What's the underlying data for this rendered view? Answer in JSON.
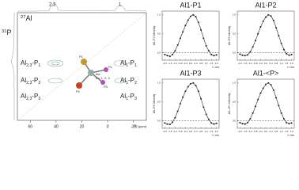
{
  "spectrum": {
    "f2_nucleus": [
      "27",
      "Al"
    ],
    "f1_nucleus": [
      "31",
      "P"
    ],
    "top_labels": [
      "2,3",
      "1"
    ],
    "left_labels": [
      [
        "Al",
        "2,3",
        "-P",
        "1"
      ],
      [
        "Al",
        "2,3",
        "-P",
        "2"
      ],
      [
        "Al",
        "2,3",
        "-P",
        "3"
      ]
    ],
    "right_labels": [
      [
        "Al",
        "1",
        "-P",
        "1"
      ],
      [
        "Al",
        "1",
        "-P",
        "2"
      ],
      [
        "Al",
        "1",
        "-P",
        "3"
      ]
    ],
    "molecule": {
      "p1": "P1",
      "px": "Px",
      "alx": "Alx",
      "note": "x = 1, 2, 3",
      "p3": "P3",
      "p2": "P2"
    },
    "xlim": [
      70,
      -30
    ],
    "xticks": [
      60,
      40,
      20,
      0,
      -20
    ],
    "xlabel": "F2 [ppm]"
  },
  "chart_data": [
    {
      "type": "line",
      "title": "Al1-P1",
      "ylabel": "Al1-P1 Intensity",
      "xlabel": "t / ms",
      "color": "#222",
      "x": [
        -2.0,
        -1.8,
        -1.6,
        -1.4,
        -1.2,
        -1.0,
        -0.8,
        -0.6,
        -0.4,
        -0.2,
        0.0,
        0.2,
        0.4,
        0.6,
        0.8,
        1.0,
        1.2,
        1.4,
        1.6,
        1.8,
        2.0
      ],
      "values": [
        -0.05,
        -0.08,
        -0.1,
        -0.05,
        0.05,
        0.2,
        0.38,
        0.55,
        0.72,
        0.86,
        0.96,
        1.0,
        0.95,
        0.8,
        0.6,
        0.38,
        0.18,
        0.05,
        -0.05,
        -0.08,
        -0.06
      ],
      "xlim": [
        -2.2,
        2.2
      ],
      "xticks": [
        {
          "value": -2,
          "label": "-2.0"
        },
        {
          "value": -1.6,
          "label": "-1.6"
        },
        {
          "value": -1.2,
          "label": "-1.2"
        },
        {
          "value": -0.8,
          "label": "-0.8"
        },
        {
          "value": -0.4,
          "label": "-0.4"
        },
        {
          "value": 0,
          "label": "0.0"
        },
        {
          "value": 0.4,
          "label": "0.4"
        },
        {
          "value": 0.8,
          "label": "0.8"
        },
        {
          "value": 1.2,
          "label": "1.2"
        },
        {
          "value": 1.6,
          "label": "1.6"
        },
        {
          "value": 2,
          "label": "2.0"
        }
      ],
      "ylim": [
        -0.2,
        1.1
      ],
      "yticks": [
        {
          "value": 0,
          "label": "0.0"
        },
        {
          "value": 0.5,
          "label": "0.5"
        },
        {
          "value": 1,
          "label": "1.0"
        }
      ]
    },
    {
      "type": "line",
      "title": "Al1-P2",
      "ylabel": "Al1-P2 Intensity",
      "xlabel": "t / ms",
      "color": "#222",
      "x": [
        -2.0,
        -1.8,
        -1.6,
        -1.4,
        -1.2,
        -1.0,
        -0.8,
        -0.6,
        -0.4,
        -0.2,
        0.0,
        0.2,
        0.4,
        0.6,
        0.8,
        1.0,
        1.2,
        1.4,
        1.6,
        1.8,
        2.0
      ],
      "values": [
        -0.04,
        -0.07,
        -0.08,
        -0.06,
        0.02,
        0.15,
        0.32,
        0.5,
        0.68,
        0.83,
        0.94,
        1.0,
        0.97,
        0.85,
        0.66,
        0.45,
        0.24,
        0.08,
        -0.03,
        -0.07,
        -0.05
      ],
      "xlim": [
        -2.2,
        2.2
      ],
      "xticks": [
        {
          "value": -2,
          "label": "-2.0"
        },
        {
          "value": -1.6,
          "label": "-1.6"
        },
        {
          "value": -1.2,
          "label": "-1.2"
        },
        {
          "value": -0.8,
          "label": "-0.8"
        },
        {
          "value": -0.4,
          "label": "-0.4"
        },
        {
          "value": 0,
          "label": "0.0"
        },
        {
          "value": 0.4,
          "label": "0.4"
        },
        {
          "value": 0.8,
          "label": "0.8"
        },
        {
          "value": 1.2,
          "label": "1.2"
        },
        {
          "value": 1.6,
          "label": "1.6"
        },
        {
          "value": 2,
          "label": "2.0"
        }
      ],
      "ylim": [
        -0.2,
        1.1
      ],
      "yticks": [
        {
          "value": 0,
          "label": "0.0"
        },
        {
          "value": 0.5,
          "label": "0.5"
        },
        {
          "value": 1,
          "label": "1.0"
        }
      ]
    },
    {
      "type": "line",
      "title": "Al1-P3",
      "ylabel": "Al1-P3 Intensity",
      "xlabel": "t / ms",
      "color": "#222",
      "x": [
        -2.0,
        -1.8,
        -1.6,
        -1.4,
        -1.2,
        -1.0,
        -0.8,
        -0.6,
        -0.4,
        -0.2,
        0.0,
        0.2,
        0.4,
        0.6,
        0.8,
        1.0,
        1.2,
        1.4,
        1.6,
        1.8,
        2.0
      ],
      "values": [
        -0.06,
        -0.09,
        -0.1,
        -0.04,
        0.08,
        0.25,
        0.45,
        0.62,
        0.78,
        0.9,
        0.98,
        1.0,
        0.93,
        0.78,
        0.58,
        0.36,
        0.17,
        0.03,
        -0.06,
        -0.09,
        -0.07
      ],
      "xlim": [
        -2.2,
        2.2
      ],
      "xticks": [
        {
          "value": -2,
          "label": "-2.0"
        },
        {
          "value": -1.6,
          "label": "-1.6"
        },
        {
          "value": -1.2,
          "label": "-1.2"
        },
        {
          "value": -0.8,
          "label": "-0.8"
        },
        {
          "value": -0.4,
          "label": "-0.4"
        },
        {
          "value": 0,
          "label": "0.0"
        },
        {
          "value": 0.4,
          "label": "0.4"
        },
        {
          "value": 0.8,
          "label": "0.8"
        },
        {
          "value": 1.2,
          "label": "1.2"
        },
        {
          "value": 1.6,
          "label": "1.6"
        },
        {
          "value": 2,
          "label": "2.0"
        }
      ],
      "ylim": [
        -0.2,
        1.1
      ],
      "yticks": [
        {
          "value": 0,
          "label": "0.0"
        },
        {
          "value": 0.5,
          "label": "0.5"
        },
        {
          "value": 1,
          "label": "1.0"
        }
      ]
    },
    {
      "type": "line",
      "title": "Al1-<P>",
      "ylabel": "Al1-<P> Intensity",
      "xlabel": "t / ms",
      "color": "#222",
      "x": [
        -2.0,
        -1.8,
        -1.6,
        -1.4,
        -1.2,
        -1.0,
        -0.8,
        -0.6,
        -0.4,
        -0.2,
        0.0,
        0.2,
        0.4,
        0.6,
        0.8,
        1.0,
        1.2,
        1.4,
        1.6,
        1.8,
        2.0
      ],
      "values": [
        -0.05,
        -0.08,
        -0.09,
        -0.05,
        0.05,
        0.2,
        0.38,
        0.56,
        0.73,
        0.86,
        0.96,
        1.0,
        0.95,
        0.81,
        0.61,
        0.4,
        0.2,
        0.05,
        -0.05,
        -0.08,
        -0.06
      ],
      "xlim": [
        -2.2,
        2.2
      ],
      "xticks": [
        {
          "value": -2,
          "label": "-2.0"
        },
        {
          "value": -1.6,
          "label": "-1.6"
        },
        {
          "value": -1.2,
          "label": "-1.2"
        },
        {
          "value": -0.8,
          "label": "-0.8"
        },
        {
          "value": -0.4,
          "label": "-0.4"
        },
        {
          "value": 0,
          "label": "0.0"
        },
        {
          "value": 0.4,
          "label": "0.4"
        },
        {
          "value": 0.8,
          "label": "0.8"
        },
        {
          "value": 1.2,
          "label": "1.2"
        },
        {
          "value": 1.6,
          "label": "1.6"
        },
        {
          "value": 2,
          "label": "2.0"
        }
      ],
      "ylim": [
        -0.2,
        1.1
      ],
      "yticks": [
        {
          "value": 0,
          "label": "0.0"
        },
        {
          "value": 0.5,
          "label": "0.5"
        },
        {
          "value": 1,
          "label": "1.0"
        }
      ]
    }
  ]
}
